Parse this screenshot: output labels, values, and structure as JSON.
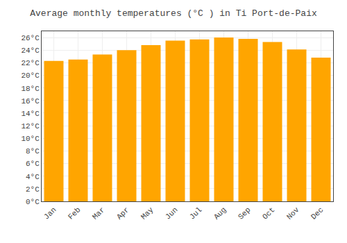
{
  "chart_data": {
    "type": "bar",
    "title": "Average monthly temperatures (°C ) in Ti Port-de-Paix",
    "categories": [
      "Jan",
      "Feb",
      "Mar",
      "Apr",
      "May",
      "Jun",
      "Jul",
      "Aug",
      "Sep",
      "Oct",
      "Nov",
      "Dec"
    ],
    "values": [
      22.3,
      22.5,
      23.3,
      24.0,
      24.8,
      25.5,
      25.7,
      26.0,
      25.8,
      25.3,
      24.1,
      22.8
    ],
    "color": "#FFA500",
    "ylim": [
      0,
      27
    ],
    "yticks": [
      {
        "value": 0,
        "label": "0°C"
      },
      {
        "value": 2,
        "label": "2°C"
      },
      {
        "value": 4,
        "label": "4°C"
      },
      {
        "value": 6,
        "label": "6°C"
      },
      {
        "value": 8,
        "label": "8°C"
      },
      {
        "value": 10,
        "label": "10°C"
      },
      {
        "value": 12,
        "label": "12°C"
      },
      {
        "value": 14,
        "label": "14°C"
      },
      {
        "value": 16,
        "label": "16°C"
      },
      {
        "value": 18,
        "label": "18°C"
      },
      {
        "value": 20,
        "label": "20°C"
      },
      {
        "value": 22,
        "label": "22°C"
      },
      {
        "value": 24,
        "label": "24°C"
      },
      {
        "value": 26,
        "label": "26°C"
      }
    ],
    "grid": true
  }
}
